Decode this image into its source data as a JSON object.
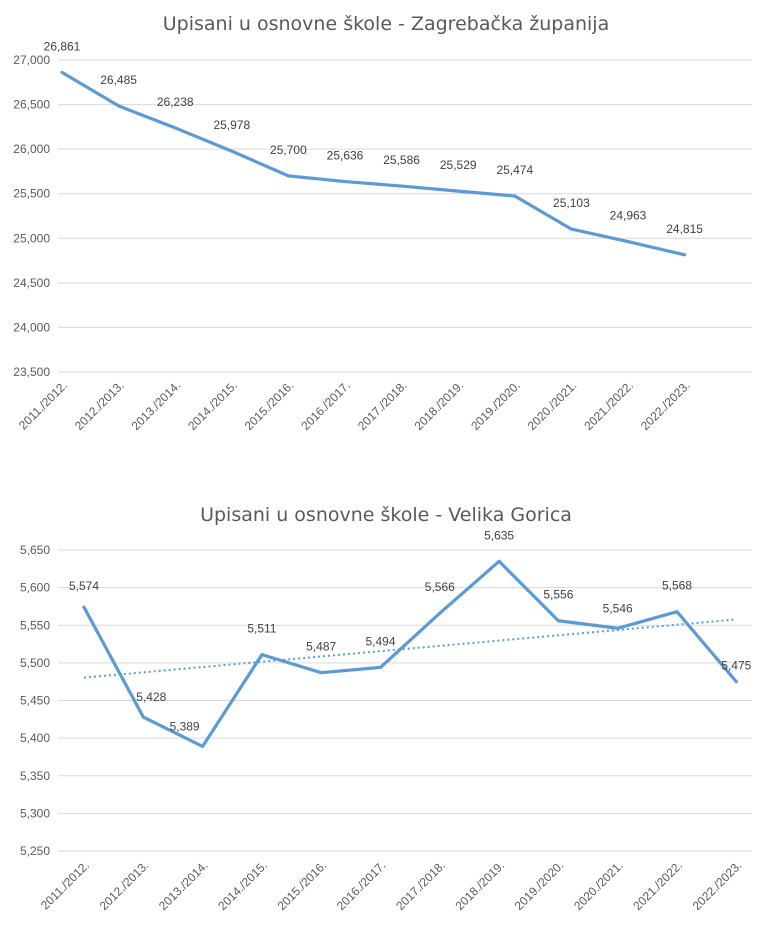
{
  "chart_data": [
    {
      "type": "line",
      "title": "Upisani u osnovne škole - Zagrebačka županija",
      "xlabel": "",
      "ylabel": "",
      "categories": [
        "2011./2012.",
        "2012./2013.",
        "2013./2014.",
        "2014./2015.",
        "2015./2016.",
        "2016./2017.",
        "2017./2018.",
        "2018./2019.",
        "2019./2020.",
        "2020./2021.",
        "2021./2022.",
        "2022./2023."
      ],
      "series": [
        {
          "values": [
            26861,
            26485,
            26238,
            25978,
            25700,
            25636,
            25586,
            25529,
            25474,
            25103,
            24963,
            24815
          ],
          "labels": [
            "26,861",
            "26,485",
            "26,238",
            "25,978",
            "25,700",
            "25,636",
            "25,586",
            "25,529",
            "25,474",
            "25,103",
            "24,963",
            "24,815"
          ],
          "color": "#5b9bd5"
        }
      ],
      "ylim": [
        23500,
        27000
      ],
      "yticks": [
        23500,
        24000,
        24500,
        25000,
        25500,
        26000,
        26500,
        27000
      ],
      "ytick_labels": [
        "23,500",
        "24,000",
        "24,500",
        "25,000",
        "25,500",
        "26,000",
        "26,500",
        "27,000"
      ],
      "grid": true,
      "trendline": false
    },
    {
      "type": "line",
      "title": "Upisani u osnovne škole - Velika Gorica",
      "xlabel": "",
      "ylabel": "",
      "categories": [
        "2011./2012.",
        "2012./2013.",
        "2013./2014.",
        "2014./2015.",
        "2015./2016.",
        "2016./2017.",
        "2017./2018.",
        "2018./2019.",
        "2019./2020.",
        "2020./2021.",
        "2021./2022.",
        "2022./2023."
      ],
      "series": [
        {
          "values": [
            5574,
            5428,
            5389,
            5511,
            5487,
            5494,
            5566,
            5635,
            5556,
            5546,
            5568,
            5475
          ],
          "labels": [
            "5,574",
            "5,428",
            "5,389",
            "5,511",
            "5,487",
            "5,494",
            "5,566",
            "5,635",
            "5,556",
            "5,546",
            "5,568",
            "5,475"
          ],
          "color": "#5b9bd5"
        }
      ],
      "ylim": [
        5250,
        5650
      ],
      "yticks": [
        5250,
        5300,
        5350,
        5400,
        5450,
        5500,
        5550,
        5600,
        5650
      ],
      "ytick_labels": [
        "5,250",
        "5,300",
        "5,350",
        "5,400",
        "5,450",
        "5,500",
        "5,550",
        "5,600",
        "5,650"
      ],
      "grid": true,
      "trendline": true,
      "trendline_style": "dotted linear"
    }
  ]
}
